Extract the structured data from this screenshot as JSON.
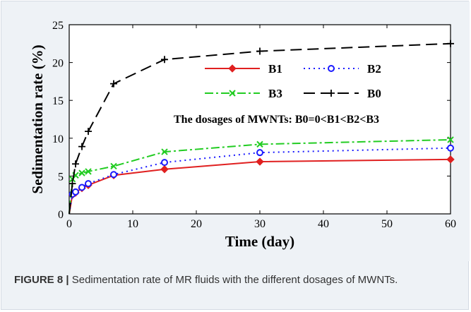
{
  "figure": {
    "caption_label": "FIGURE 8 |",
    "caption_text": "Sedimentation rate of MR fluids with the different dosages of MWNTs."
  },
  "chart_data": {
    "type": "line",
    "xlabel": "Time (day)",
    "ylabel": "Sedimentation rate (%)",
    "xlim": [
      0,
      60
    ],
    "ylim": [
      0,
      25
    ],
    "xticks": [
      0,
      10,
      20,
      30,
      40,
      50,
      60
    ],
    "yticks": [
      0,
      5,
      10,
      15,
      20,
      25
    ],
    "grid": false,
    "legend_position": "inside-top-right",
    "annotation": "The dosages of MWNTs: B0=0<B1<B2<B3",
    "series": [
      {
        "name": "B1",
        "color": "#e02020",
        "style": "solid",
        "marker": "diamond",
        "x": [
          0,
          0.5,
          1,
          2,
          3,
          7,
          15,
          30,
          60
        ],
        "y": [
          0,
          2.5,
          2.8,
          3.4,
          3.8,
          5.1,
          5.9,
          6.9,
          7.2
        ]
      },
      {
        "name": "B2",
        "color": "#1a1aff",
        "style": "dotted",
        "marker": "circle",
        "x": [
          0,
          0.5,
          1,
          2,
          3,
          7,
          15,
          30,
          60
        ],
        "y": [
          0,
          2.6,
          2.9,
          3.5,
          4.0,
          5.2,
          6.8,
          8.1,
          8.7
        ]
      },
      {
        "name": "B3",
        "color": "#22cc22",
        "style": "dashdot",
        "marker": "x",
        "x": [
          0,
          0.5,
          1,
          2,
          3,
          7,
          15,
          30,
          60
        ],
        "y": [
          0,
          4.6,
          5.1,
          5.4,
          5.6,
          6.3,
          8.2,
          9.2,
          9.8
        ]
      },
      {
        "name": "B0",
        "color": "#000000",
        "style": "dashed",
        "marker": "plus",
        "x": [
          0,
          0.5,
          1,
          2,
          3,
          7,
          15,
          30,
          60
        ],
        "y": [
          0,
          4.0,
          6.6,
          8.9,
          10.9,
          17.2,
          20.4,
          21.5,
          22.5
        ]
      }
    ]
  }
}
